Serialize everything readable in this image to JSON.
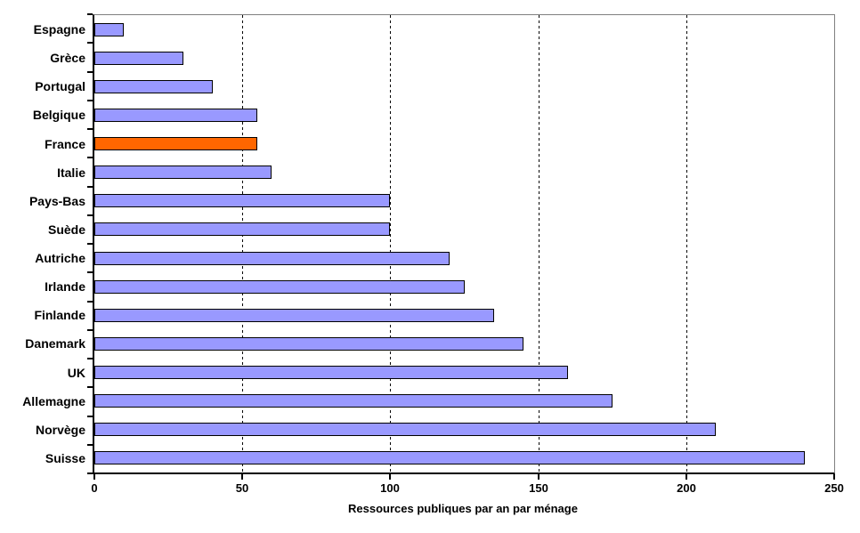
{
  "chart_data": {
    "type": "bar",
    "orientation": "horizontal",
    "title": "",
    "xlabel": "Ressources publiques par an par ménage",
    "ylabel": "",
    "categories": [
      "Espagne",
      "Grèce",
      "Portugal",
      "Belgique",
      "France",
      "Italie",
      "Pays-Bas",
      "Suède",
      "Autriche",
      "Irlande",
      "Finlande",
      "Danemark",
      "UK",
      "Allemagne",
      "Norvège",
      "Suisse"
    ],
    "values": [
      10,
      30,
      40,
      55,
      55,
      60,
      100,
      100,
      120,
      125,
      135,
      145,
      160,
      175,
      210,
      240
    ],
    "highlighted_category": "France",
    "xlim": [
      0,
      250
    ],
    "xticks": [
      0,
      50,
      100,
      150,
      200,
      250
    ],
    "gridlines": [
      50,
      100,
      150,
      200
    ],
    "grid_style": "dashed",
    "legend": "none",
    "colors": {
      "bar_fill": "#9999FF",
      "highlight_fill": "#FF6600",
      "bar_border": "#000000",
      "axis": "#000000",
      "plot_border": "#808080",
      "background": "#FFFFFF"
    }
  }
}
